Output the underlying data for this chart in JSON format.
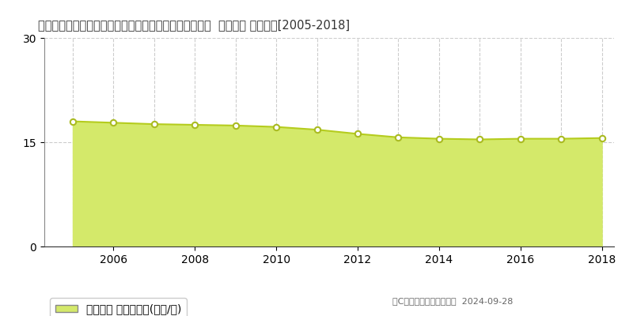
{
  "title": "茨城県那珂郡東海村大字舟石川字大山台５７３番４２外  基準地価 地価推移[2005-2018]",
  "years": [
    2005,
    2006,
    2007,
    2008,
    2009,
    2010,
    2011,
    2012,
    2013,
    2014,
    2015,
    2016,
    2017,
    2018
  ],
  "values": [
    18.0,
    17.8,
    17.6,
    17.5,
    17.4,
    17.2,
    16.8,
    16.2,
    15.7,
    15.5,
    15.4,
    15.5,
    15.5,
    15.6
  ],
  "ylim": [
    0,
    30
  ],
  "yticks": [
    0,
    15,
    30
  ],
  "fill_color": "#d4e96a",
  "line_color": "#b5cc1e",
  "marker_facecolor": "#ffffff",
  "marker_edgecolor": "#aabb22",
  "bg_color": "#ffffff",
  "grid_color": "#cccccc",
  "legend_label": "基準地価 平均坪単価(万円/坪)",
  "copyright_text": "（C）土地価格ドットコム  2024-09-28",
  "title_fontsize": 10.5,
  "axis_fontsize": 10,
  "legend_fontsize": 10
}
